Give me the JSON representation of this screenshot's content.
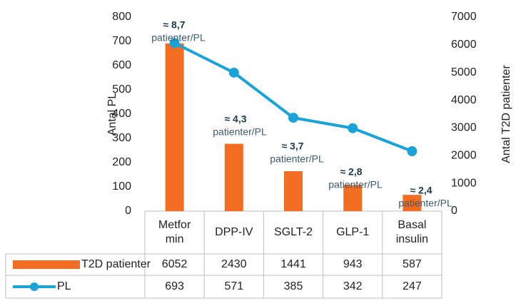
{
  "chart_data": {
    "type": "combo",
    "categories": [
      "Metfor min",
      "DPP-IV",
      "SGLT-2",
      "GLP-1",
      "Basal insulin"
    ],
    "series": [
      {
        "name": "T2D patienter",
        "type": "bar",
        "axis": "y2",
        "color": "#f26d21",
        "values": [
          6052,
          2430,
          1441,
          943,
          587
        ]
      },
      {
        "name": "PL",
        "type": "line",
        "axis": "y",
        "color": "#1aa3d9",
        "values": [
          693,
          571,
          385,
          342,
          247
        ]
      }
    ],
    "ylabel": "Antal PL",
    "y2label": "Antal T2D patienter",
    "ylim": [
      0,
      800
    ],
    "yticks": [
      0,
      100,
      200,
      300,
      400,
      500,
      600,
      700,
      800
    ],
    "y2lim": [
      0,
      7000
    ],
    "y2ticks": [
      0,
      1000,
      2000,
      3000,
      4000,
      5000,
      6000,
      7000
    ],
    "grid": false,
    "data_table": true,
    "annotations": [
      {
        "ratio": "≈ 8,7",
        "unit": "patienter/PL"
      },
      {
        "ratio": "≈ 4,3",
        "unit": "patienter/PL"
      },
      {
        "ratio": "≈ 3,7",
        "unit": "patienter/PL"
      },
      {
        "ratio": "≈ 2,8",
        "unit": "patienter/PL"
      },
      {
        "ratio": "≈ 2,4",
        "unit": "patienter/PL"
      }
    ]
  }
}
